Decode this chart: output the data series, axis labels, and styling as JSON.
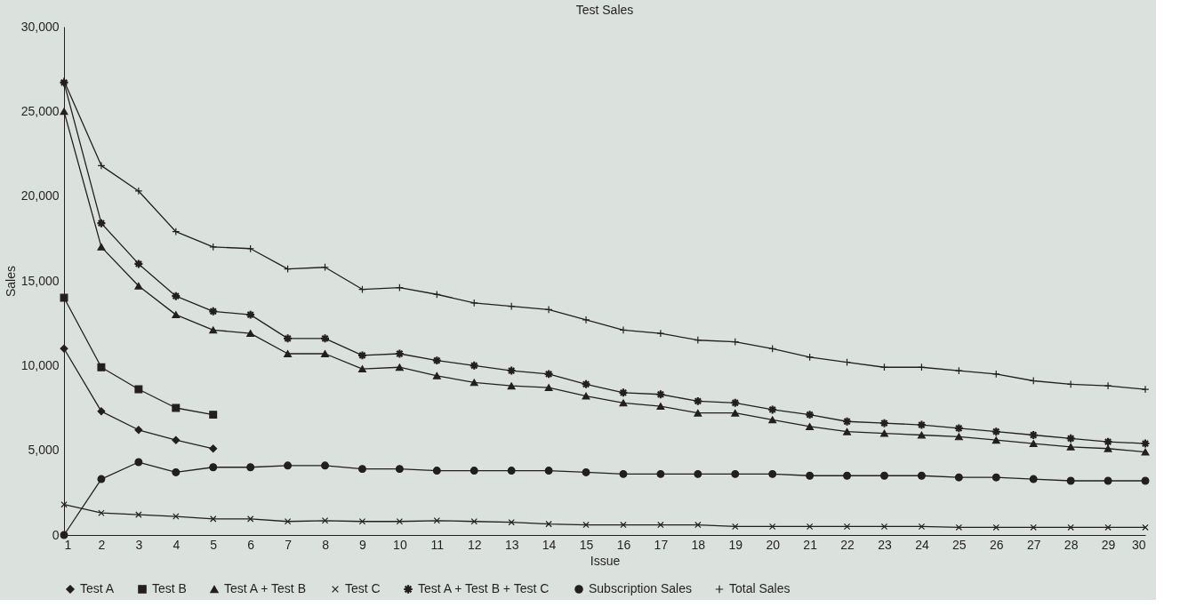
{
  "chart_data": {
    "type": "line",
    "title": "Test Sales",
    "xlabel": "Issue",
    "ylabel": "Sales",
    "x": [
      1,
      2,
      3,
      4,
      5,
      6,
      7,
      8,
      9,
      10,
      11,
      12,
      13,
      14,
      15,
      16,
      17,
      18,
      19,
      20,
      21,
      22,
      23,
      24,
      25,
      26,
      27,
      28,
      29,
      30
    ],
    "xlim": [
      1,
      30
    ],
    "xticks": [
      1,
      2,
      3,
      4,
      5,
      6,
      7,
      8,
      9,
      10,
      11,
      12,
      13,
      14,
      15,
      16,
      17,
      18,
      19,
      20,
      21,
      22,
      23,
      24,
      25,
      26,
      27,
      28,
      29,
      30
    ],
    "ylim": [
      0,
      30000
    ],
    "yticks": [
      0,
      {
        "value": 5000,
        "label": "5,000"
      },
      {
        "value": 10000,
        "label": "10,000"
      },
      {
        "value": 15000,
        "label": "15,000"
      },
      {
        "value": 20000,
        "label": "20,000"
      },
      {
        "value": 25000,
        "label": "25,000"
      },
      {
        "value": 30000,
        "label": "30,000"
      }
    ],
    "legend": "bottom",
    "line_style": "solid",
    "series": [
      {
        "name": "Test A",
        "color": "#231f20",
        "marker": "diamond",
        "values": [
          11000,
          7300,
          6200,
          5600,
          5100,
          null,
          null,
          null,
          null,
          null,
          null,
          null,
          null,
          null,
          null,
          null,
          null,
          null,
          null,
          null,
          null,
          null,
          null,
          null,
          null,
          null,
          null,
          null,
          null,
          null
        ]
      },
      {
        "name": "Test B",
        "color": "#231f20",
        "marker": "square",
        "values": [
          14000,
          9900,
          8600,
          7500,
          7100,
          null,
          null,
          null,
          null,
          null,
          null,
          null,
          null,
          null,
          null,
          null,
          null,
          null,
          null,
          null,
          null,
          null,
          null,
          null,
          null,
          null,
          null,
          null,
          null,
          null
        ]
      },
      {
        "name": "Test A + Test B",
        "color": "#231f20",
        "marker": "triangle",
        "values": [
          25000,
          17000,
          14700,
          13000,
          12100,
          11900,
          10700,
          10700,
          9800,
          9900,
          9400,
          9000,
          8800,
          8700,
          8200,
          7800,
          7600,
          7200,
          7200,
          6800,
          6400,
          6100,
          6000,
          5900,
          5800,
          5600,
          5400,
          5200,
          5100,
          4900
        ]
      },
      {
        "name": "Test C",
        "color": "#231f20",
        "marker": "x",
        "values": [
          1800,
          1300,
          1200,
          1100,
          950,
          950,
          800,
          850,
          800,
          800,
          850,
          800,
          750,
          650,
          600,
          600,
          600,
          600,
          500,
          500,
          500,
          500,
          500,
          500,
          450,
          450,
          450,
          450,
          450,
          450
        ]
      },
      {
        "name": "Test A + Test B + Test C",
        "color": "#231f20",
        "marker": "star",
        "values": [
          26700,
          18400,
          16000,
          14100,
          13200,
          13000,
          11600,
          11600,
          10600,
          10700,
          10300,
          10000,
          9700,
          9500,
          8900,
          8400,
          8300,
          7900,
          7800,
          7400,
          7100,
          6700,
          6600,
          6500,
          6300,
          6100,
          5900,
          5700,
          5500,
          5400
        ]
      },
      {
        "name": "Subscription Sales",
        "color": "#231f20",
        "marker": "circle",
        "values": [
          0,
          3300,
          4300,
          3700,
          4000,
          4000,
          4100,
          4100,
          3900,
          3900,
          3800,
          3800,
          3800,
          3800,
          3700,
          3600,
          3600,
          3600,
          3600,
          3600,
          3500,
          3500,
          3500,
          3500,
          3400,
          3400,
          3300,
          3200,
          3200,
          3200
        ]
      },
      {
        "name": "Total Sales",
        "color": "#231f20",
        "marker": "cross",
        "values": [
          26800,
          21800,
          20300,
          17900,
          17000,
          16900,
          15700,
          15800,
          14500,
          14600,
          14200,
          13700,
          13500,
          13300,
          12700,
          12100,
          11900,
          11500,
          11400,
          11000,
          10500,
          10200,
          9900,
          9900,
          9700,
          9500,
          9100,
          8900,
          8800,
          8600
        ]
      }
    ]
  }
}
